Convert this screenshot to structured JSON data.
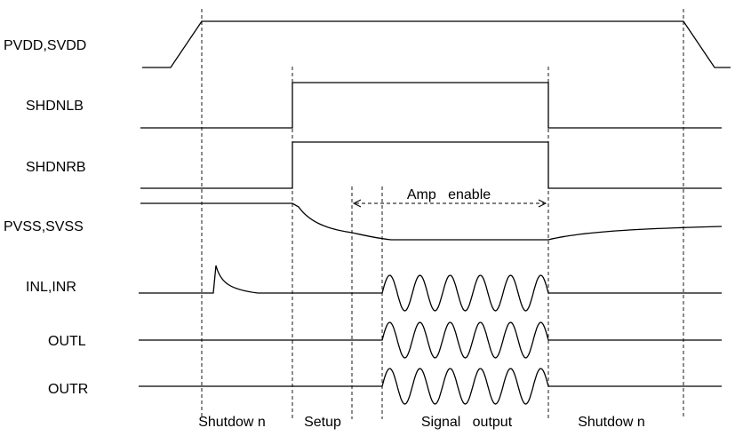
{
  "signals": [
    {
      "id": "pvdd",
      "label": "PVDD,SVDD"
    },
    {
      "id": "shdnlb",
      "label": "SHDNLB"
    },
    {
      "id": "shdnrb",
      "label": "SHDNRB"
    },
    {
      "id": "pvss",
      "label": "PVSS,SVSS"
    },
    {
      "id": "inl",
      "label": "INL,INR"
    },
    {
      "id": "outl",
      "label": "OUTL"
    },
    {
      "id": "outr",
      "label": "OUTR"
    }
  ],
  "phases": [
    "Shutdow n",
    "Setup",
    "Signal   output",
    "Shutdow n"
  ],
  "annotation": {
    "amp_enable": "Amp   enable"
  }
}
